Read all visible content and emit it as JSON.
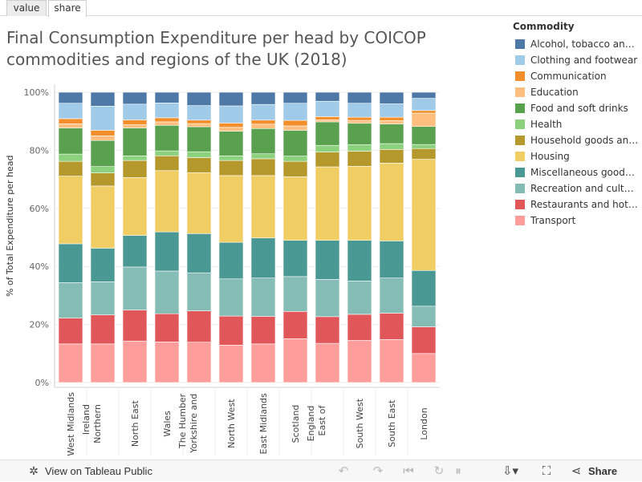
{
  "tabs": [
    {
      "label": "value",
      "active": false
    },
    {
      "label": "share",
      "active": true
    }
  ],
  "title_lines": [
    "Final Consumption Expenditure per head by COICOP",
    "commodities and regions of the UK (2018)"
  ],
  "legend": {
    "title": "Commodity",
    "items": [
      {
        "label": "Alcohol, tobacco and …",
        "color": "#4e79a7"
      },
      {
        "label": "Clothing and footwear",
        "color": "#a0cbe8"
      },
      {
        "label": "Communication",
        "color": "#f28e2b"
      },
      {
        "label": "Education",
        "color": "#ffbe7d"
      },
      {
        "label": "Food and soft drinks",
        "color": "#59a14f"
      },
      {
        "label": "Health",
        "color": "#8cd17d"
      },
      {
        "label": "Household goods and …",
        "color": "#b6992d"
      },
      {
        "label": "Housing",
        "color": "#f1ce63"
      },
      {
        "label": "Miscellaneous goods …",
        "color": "#499894"
      },
      {
        "label": "Recreation and culture",
        "color": "#86bcb6"
      },
      {
        "label": "Restaurants and hotels",
        "color": "#e15759"
      },
      {
        "label": "Transport",
        "color": "#ff9d9a"
      }
    ]
  },
  "chart_data": {
    "type": "bar",
    "stacked": true,
    "ylabel": "% of Total Expenditure per head",
    "ylim": [
      0,
      100
    ],
    "yticks": [
      "0%",
      "20%",
      "40%",
      "60%",
      "80%",
      "100%"
    ],
    "categories": [
      {
        "label": "West Midlands",
        "lines": [
          "West Midlands"
        ]
      },
      {
        "label": "Northern Ireland",
        "lines": [
          "Northern",
          "Ireland"
        ]
      },
      {
        "label": "North East",
        "lines": [
          "North East"
        ]
      },
      {
        "label": "Wales",
        "lines": [
          "Wales"
        ]
      },
      {
        "label": "Yorkshire and The Humber",
        "lines": [
          "Yorkshire and",
          "The Humber"
        ]
      },
      {
        "label": "North West",
        "lines": [
          "North West"
        ]
      },
      {
        "label": "East Midlands",
        "lines": [
          "East Midlands"
        ]
      },
      {
        "label": "Scotland",
        "lines": [
          "Scotland"
        ]
      },
      {
        "label": "East of England",
        "lines": [
          "East of",
          "England"
        ]
      },
      {
        "label": "South West",
        "lines": [
          "South West"
        ]
      },
      {
        "label": "South East",
        "lines": [
          "South East"
        ]
      },
      {
        "label": "London",
        "lines": [
          "London"
        ]
      }
    ],
    "series": [
      {
        "name": "Transport",
        "color": "#ff9d9a",
        "values": [
          13.3,
          13.3,
          14.3,
          14.0,
          13.9,
          12.9,
          13.3,
          15.1,
          13.5,
          14.5,
          14.8,
          10.0
        ]
      },
      {
        "name": "Restaurants and hotels",
        "color": "#e15759",
        "values": [
          8.9,
          10.0,
          10.7,
          9.7,
          10.8,
          10.0,
          9.5,
          9.4,
          9.2,
          9.0,
          9.1,
          9.2
        ]
      },
      {
        "name": "Recreation and culture",
        "color": "#86bcb6",
        "values": [
          12.2,
          11.4,
          14.8,
          14.7,
          13.1,
          12.8,
          13.2,
          12.0,
          12.8,
          11.5,
          12.1,
          7.1
        ]
      },
      {
        "name": "Miscellaneous goods …",
        "color": "#499894",
        "values": [
          13.4,
          11.6,
          10.9,
          13.5,
          13.5,
          12.6,
          13.8,
          12.5,
          13.5,
          14.0,
          12.8,
          12.3
        ]
      },
      {
        "name": "Housing",
        "color": "#f1ce63",
        "values": [
          23.3,
          21.4,
          19.9,
          21.1,
          21.0,
          23.0,
          21.5,
          21.9,
          25.3,
          25.5,
          26.8,
          38.3
        ]
      },
      {
        "name": "Household goods and …",
        "color": "#b6992d",
        "values": [
          5.1,
          4.5,
          5.9,
          5.1,
          5.2,
          5.2,
          5.8,
          5.3,
          5.1,
          5.2,
          4.7,
          3.7
        ]
      },
      {
        "name": "Health",
        "color": "#8cd17d",
        "values": [
          2.5,
          2.2,
          1.6,
          1.7,
          2.0,
          1.6,
          1.7,
          1.8,
          2.3,
          2.2,
          2.0,
          1.4
        ]
      },
      {
        "name": "Food and soft drinks",
        "color": "#59a14f",
        "values": [
          9.0,
          9.0,
          9.6,
          8.8,
          8.6,
          8.5,
          8.7,
          8.9,
          8.1,
          7.4,
          6.8,
          6.2
        ]
      },
      {
        "name": "Education",
        "color": "#ffbe7d",
        "values": [
          1.4,
          1.6,
          1.1,
          1.2,
          1.1,
          1.3,
          1.5,
          1.5,
          0.7,
          1.0,
          1.1,
          4.6
        ]
      },
      {
        "name": "Communication",
        "color": "#f28e2b",
        "values": [
          1.8,
          1.9,
          1.7,
          1.4,
          1.2,
          1.5,
          1.4,
          1.9,
          1.1,
          1.1,
          1.2,
          0.9
        ]
      },
      {
        "name": "Clothing and footwear",
        "color": "#a0cbe8",
        "values": [
          5.3,
          8.3,
          5.4,
          5.1,
          5.0,
          5.9,
          5.4,
          5.9,
          5.3,
          4.8,
          4.6,
          4.2
        ]
      },
      {
        "name": "Alcohol, tobacco and …",
        "color": "#4e79a7",
        "values": [
          3.8,
          4.8,
          4.1,
          3.7,
          4.6,
          4.7,
          4.2,
          3.8,
          3.1,
          3.8,
          4.0,
          2.1
        ]
      }
    ]
  },
  "toolbar": {
    "view_label": "View on Tableau Public",
    "share_label": "Share",
    "icons": {
      "tableau": "tableau-logo-icon",
      "undo": "undo-icon",
      "redo": "redo-icon",
      "revert": "revert-icon",
      "refresh": "refresh-icon",
      "pause": "pause-icon",
      "download": "download-icon",
      "fullscreen": "fullscreen-icon",
      "share": "share-icon"
    }
  }
}
